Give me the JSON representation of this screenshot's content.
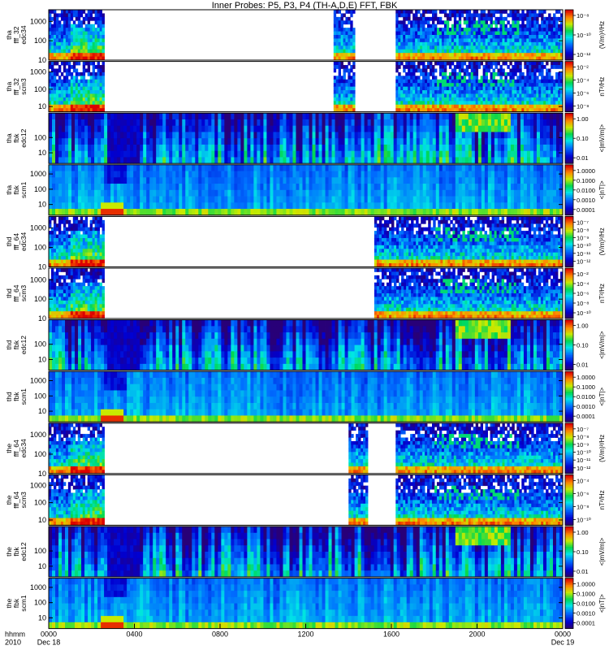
{
  "chart_data": {
    "type": "heatmap",
    "title": "Inner Probes: P5, P3, P4 (TH-A,D,E) FFT, FBK",
    "x_axis": {
      "row_labels": [
        "hhmm",
        "2010"
      ],
      "range_hours": [
        0,
        24
      ],
      "ticks": [
        {
          "hour": 0,
          "label": "0000",
          "sublabel": "Dec 18"
        },
        {
          "hour": 4,
          "label": "0400",
          "sublabel": ""
        },
        {
          "hour": 8,
          "label": "0800",
          "sublabel": ""
        },
        {
          "hour": 12,
          "label": "1200",
          "sublabel": ""
        },
        {
          "hour": 16,
          "label": "1600",
          "sublabel": ""
        },
        {
          "hour": 20,
          "label": "2000",
          "sublabel": ""
        },
        {
          "hour": 24,
          "label": "0000",
          "sublabel": "Dec 19"
        }
      ]
    },
    "panels": [
      {
        "probe": "tha",
        "kind": "fff_32",
        "channel": "edc34",
        "ylabel": [
          "tha",
          "fff_32",
          "edc34"
        ],
        "yticks": [
          "1000",
          "100",
          "10"
        ],
        "ylim": [
          10,
          4000
        ],
        "log": true,
        "unit": "(V/m)²/Hz",
        "cbar_ticks": [
          "10⁻⁸",
          "10⁻¹⁰",
          "10⁻¹²"
        ],
        "cbar_kind": "rainbow",
        "segments": [
          [
            0,
            2.6
          ],
          [
            13.3,
            14.3
          ],
          [
            16.2,
            24
          ]
        ]
      },
      {
        "probe": "tha",
        "kind": "fff_32",
        "channel": "scm3",
        "ylabel": [
          "tha",
          "fff_32",
          "scm3"
        ],
        "yticks": [
          "1000",
          "100",
          "10"
        ],
        "ylim": [
          5,
          4000
        ],
        "log": true,
        "unit": "nT²/Hz",
        "cbar_ticks": [
          "10⁻²",
          "10⁻⁴",
          "10⁻⁶",
          "10⁻⁸"
        ],
        "cbar_kind": "rainbow",
        "segments": [
          [
            0,
            2.6
          ],
          [
            13.3,
            14.3
          ],
          [
            16.2,
            24
          ]
        ]
      },
      {
        "probe": "tha",
        "kind": "fbk",
        "channel": "edc12",
        "ylabel": [
          "tha",
          "fbk",
          "edc12"
        ],
        "yticks": [
          "100",
          "10"
        ],
        "ylim": [
          2,
          4000
        ],
        "log": true,
        "unit": "<|mV/m|>",
        "cbar_ticks": [
          "1.00",
          "0.10",
          "0.01"
        ],
        "cbar_kind": "rainbow",
        "segments": [
          [
            0,
            24
          ]
        ]
      },
      {
        "probe": "tha",
        "kind": "fbk",
        "channel": "scm1",
        "ylabel": [
          "tha",
          "fbk",
          "scm1"
        ],
        "yticks": [
          "1000",
          "100",
          "10"
        ],
        "ylim": [
          2,
          4000
        ],
        "log": true,
        "unit": "<|nT|>",
        "cbar_ticks": [
          "1.0000",
          "0.1000",
          "0.0100",
          "0.0010",
          "0.0001"
        ],
        "cbar_kind": "rainbow",
        "segments": [
          [
            0,
            24
          ]
        ]
      },
      {
        "probe": "thd",
        "kind": "fff_64",
        "channel": "edc34",
        "ylabel": [
          "thd",
          "fff_64",
          "edc34"
        ],
        "yticks": [
          "1000",
          "100",
          "10"
        ],
        "ylim": [
          10,
          4000
        ],
        "log": true,
        "unit": "(V/m)²/Hz",
        "cbar_ticks": [
          "10⁻⁷",
          "10⁻⁸",
          "10⁻⁹",
          "10⁻¹⁰",
          "10⁻¹¹",
          "10⁻¹²"
        ],
        "cbar_kind": "rainbow",
        "segments": [
          [
            0,
            2.6
          ],
          [
            15.2,
            24
          ]
        ]
      },
      {
        "probe": "thd",
        "kind": "fff_64",
        "channel": "scm3",
        "ylabel": [
          "thd",
          "fff_64",
          "scm3"
        ],
        "yticks": [
          "1000",
          "100",
          "10"
        ],
        "ylim": [
          10,
          4000
        ],
        "log": true,
        "unit": "nT²/Hz",
        "cbar_ticks": [
          "10⁻²",
          "10⁻⁴",
          "10⁻⁶",
          "10⁻⁸",
          "10⁻¹⁰"
        ],
        "cbar_kind": "rainbow",
        "segments": [
          [
            0,
            2.6
          ],
          [
            15.2,
            24
          ]
        ]
      },
      {
        "probe": "thd",
        "kind": "fbk",
        "channel": "edc12",
        "ylabel": [
          "thd",
          "fbk",
          "edc12"
        ],
        "yticks": [
          "100",
          "10"
        ],
        "ylim": [
          2,
          4000
        ],
        "log": true,
        "unit": "<|mV/m|>",
        "cbar_ticks": [
          "1.00",
          "0.10",
          "0.01"
        ],
        "cbar_kind": "rainbow",
        "segments": [
          [
            0,
            24
          ]
        ]
      },
      {
        "probe": "thd",
        "kind": "fbk",
        "channel": "scm1",
        "ylabel": [
          "thd",
          "fbk",
          "scm1"
        ],
        "yticks": [
          "1000",
          "100",
          "10"
        ],
        "ylim": [
          2,
          4000
        ],
        "log": true,
        "unit": "<|nT|>",
        "cbar_ticks": [
          "1.0000",
          "0.1000",
          "0.0100",
          "0.0010",
          "0.0001"
        ],
        "cbar_kind": "rainbow",
        "segments": [
          [
            0,
            24
          ]
        ]
      },
      {
        "probe": "the",
        "kind": "fff_64",
        "channel": "edc34",
        "ylabel": [
          "the",
          "fff_64",
          "edc34"
        ],
        "yticks": [
          "1000",
          "100",
          "10"
        ],
        "ylim": [
          10,
          4000
        ],
        "log": true,
        "unit": "(V/m)²/Hz",
        "cbar_ticks": [
          "10⁻⁷",
          "10⁻⁸",
          "10⁻⁹",
          "10⁻¹⁰",
          "10⁻¹¹",
          "10⁻¹²"
        ],
        "cbar_kind": "rainbow",
        "segments": [
          [
            0,
            2.6
          ],
          [
            14.0,
            14.9
          ],
          [
            16.2,
            24
          ]
        ]
      },
      {
        "probe": "the",
        "kind": "fff_64",
        "channel": "scm3",
        "ylabel": [
          "the",
          "fff_64",
          "scm3"
        ],
        "yticks": [
          "1000",
          "100",
          "10"
        ],
        "ylim": [
          5,
          4000
        ],
        "log": true,
        "unit": "nT²/Hz",
        "cbar_ticks": [
          "10⁻⁴",
          "10⁻⁶",
          "10⁻⁸",
          "10⁻¹⁰"
        ],
        "cbar_kind": "rainbow",
        "segments": [
          [
            0,
            2.6
          ],
          [
            14.0,
            14.9
          ],
          [
            16.2,
            24
          ]
        ]
      },
      {
        "probe": "the",
        "kind": "fbk",
        "channel": "edc12",
        "ylabel": [
          "the",
          "fbk",
          "edc12"
        ],
        "yticks": [
          "100",
          "10"
        ],
        "ylim": [
          2,
          4000
        ],
        "log": true,
        "unit": "<|mV/m|>",
        "cbar_ticks": [
          "1.00",
          "0.10",
          "0.01"
        ],
        "cbar_kind": "rainbow",
        "segments": [
          [
            0,
            24
          ]
        ]
      },
      {
        "probe": "the",
        "kind": "fbk",
        "channel": "scm1",
        "ylabel": [
          "the",
          "fbk",
          "scm1"
        ],
        "yticks": [
          "1000",
          "100",
          "10"
        ],
        "ylim": [
          2,
          4000
        ],
        "log": true,
        "unit": "<|nT|>",
        "cbar_ticks": [
          "1.0000",
          "0.1000",
          "0.0100",
          "0.0010",
          "0.0001"
        ],
        "cbar_kind": "rainbow",
        "segments": [
          [
            0,
            24
          ]
        ]
      }
    ]
  }
}
